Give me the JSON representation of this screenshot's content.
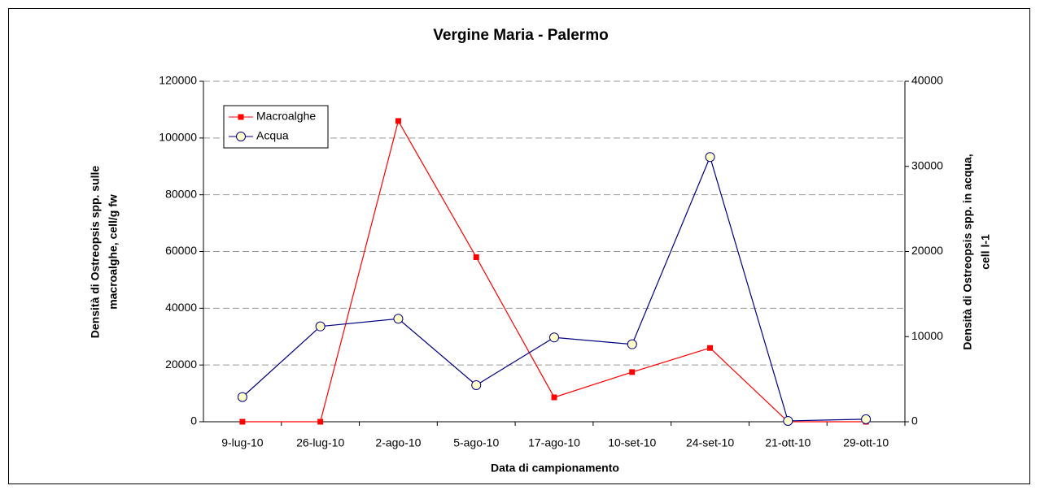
{
  "chart_data": {
    "type": "line",
    "title": "Vergine Maria - Palermo",
    "xlabel": "Data di campionamento",
    "ylabel": [
      "Densità di Ostreopsis spp. sulle",
      "macroalghe, cell/g fw"
    ],
    "y2label": [
      "Densità di Ostreopsis spp. in acqua,",
      "cell l-1"
    ],
    "categories": [
      "9-lug-10",
      "26-lug-10",
      "2-ago-10",
      "5-ago-10",
      "17-ago-10",
      "10-set-10",
      "24-set-10",
      "21-ott-10",
      "29-ott-10"
    ],
    "series": [
      {
        "name": "Macroalghe",
        "color": "#ff0000",
        "marker": "square",
        "axis": "y",
        "values": [
          0,
          0,
          106000,
          58000,
          8600,
          17500,
          26000,
          0,
          0
        ]
      },
      {
        "name": "Acqua",
        "color": "#000080",
        "marker": "circle",
        "axis": "y2",
        "values": [
          2900,
          11200,
          12100,
          4300,
          9900,
          9100,
          31100,
          100,
          300
        ]
      }
    ],
    "ylim": [
      0,
      120000
    ],
    "yticks": [
      0,
      20000,
      40000,
      60000,
      80000,
      100000,
      120000
    ],
    "y2lim": [
      0,
      40000
    ],
    "y2ticks": [
      0,
      10000,
      20000,
      30000,
      40000
    ],
    "grid": true,
    "legend": "upper left"
  }
}
